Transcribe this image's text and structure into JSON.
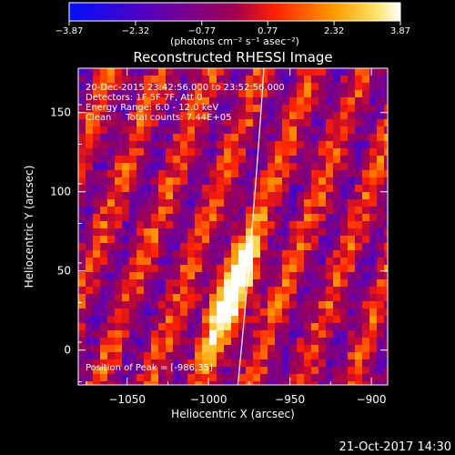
{
  "colorbar": {
    "ticks": [
      "-3.87",
      "-2.32",
      "-0.77",
      "0.77",
      "2.32",
      "3.87"
    ],
    "min": -3.87,
    "max": 3.87,
    "units": "(photons cm⁻² s⁻¹ asec⁻²)"
  },
  "chart_data": {
    "type": "heatmap",
    "title": "Reconstructed RHESSI Image",
    "xlabel": "Heliocentric X (arcsec)",
    "ylabel": "Heliocentric Y (arcsec)",
    "xlim": [
      -1080,
      -890
    ],
    "ylim": [
      -22,
      178
    ],
    "xticks": [
      -1050,
      -1000,
      -950,
      -900
    ],
    "yticks": [
      0,
      50,
      100,
      150
    ],
    "xtick_labels": [
      "−1050",
      "−1000",
      "−950",
      "−900"
    ],
    "ytick_labels": [
      "0",
      "50",
      "100",
      "150"
    ],
    "info_lines": [
      "20-Dec-2015 23:42:56.000 to 23:52:56.000",
      "Detectors: 1F 5F 7F, Att 0",
      "Energy Range: 6.0 - 12.0 keV",
      "Clean     Total counts: 7.44E+05"
    ],
    "peak_label": "Position of Peak = [-986,35]",
    "peak": [
      -986,
      35
    ],
    "limb_line": [
      [
        -982,
        -22
      ],
      [
        -966,
        178
      ]
    ],
    "colorscale": [
      "#0010ff",
      "#6a00b0",
      "#ff2800",
      "#ffb000",
      "#ffffff"
    ]
  },
  "timestamp": "21-Oct-2017 14:30"
}
